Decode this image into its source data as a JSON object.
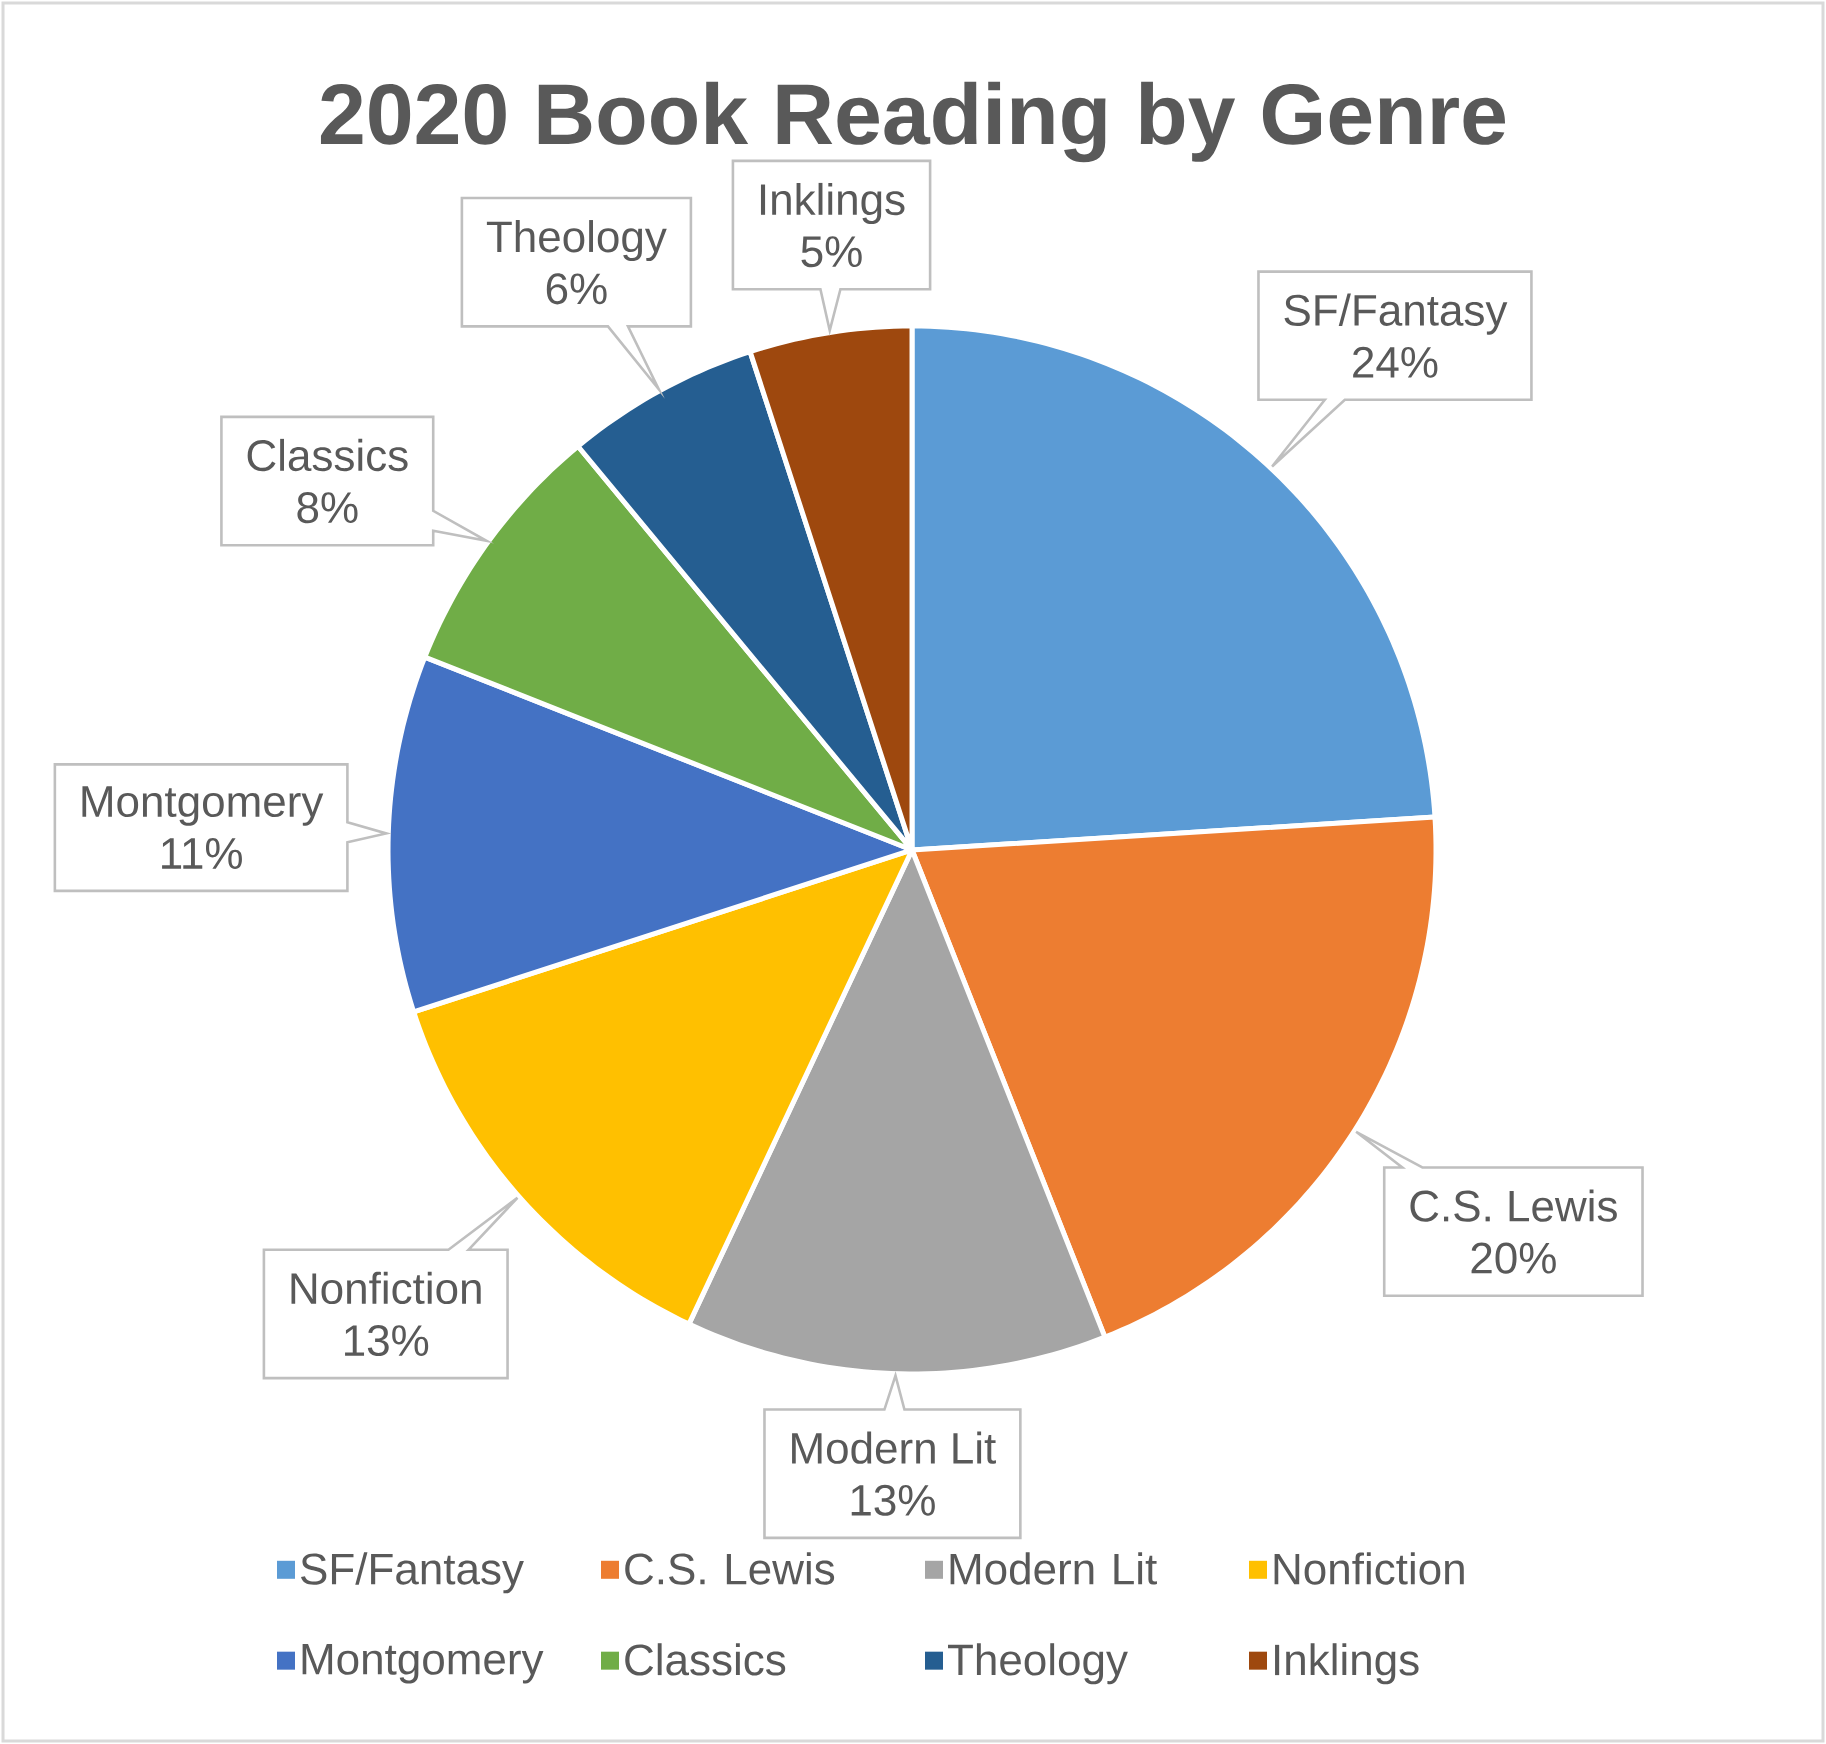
{
  "chart_data": {
    "type": "pie",
    "title": "2020 Book Reading by Genre",
    "categories": [
      "SF/Fantasy",
      "C.S. Lewis",
      "Modern Lit",
      "Nonfiction",
      "Montgomery",
      "Classics",
      "Theology",
      "Inklings"
    ],
    "values": [
      24,
      20,
      13,
      13,
      11,
      8,
      6,
      5
    ],
    "colors": [
      "#5b9bd5",
      "#ed7d31",
      "#a5a5a5",
      "#ffc000",
      "#4472c4",
      "#70ad47",
      "#255e91",
      "#9e480e"
    ],
    "value_labels": [
      "24%",
      "20%",
      "13%",
      "13%",
      "11%",
      "8%",
      "6%",
      "5%"
    ],
    "legend": "bottom"
  }
}
